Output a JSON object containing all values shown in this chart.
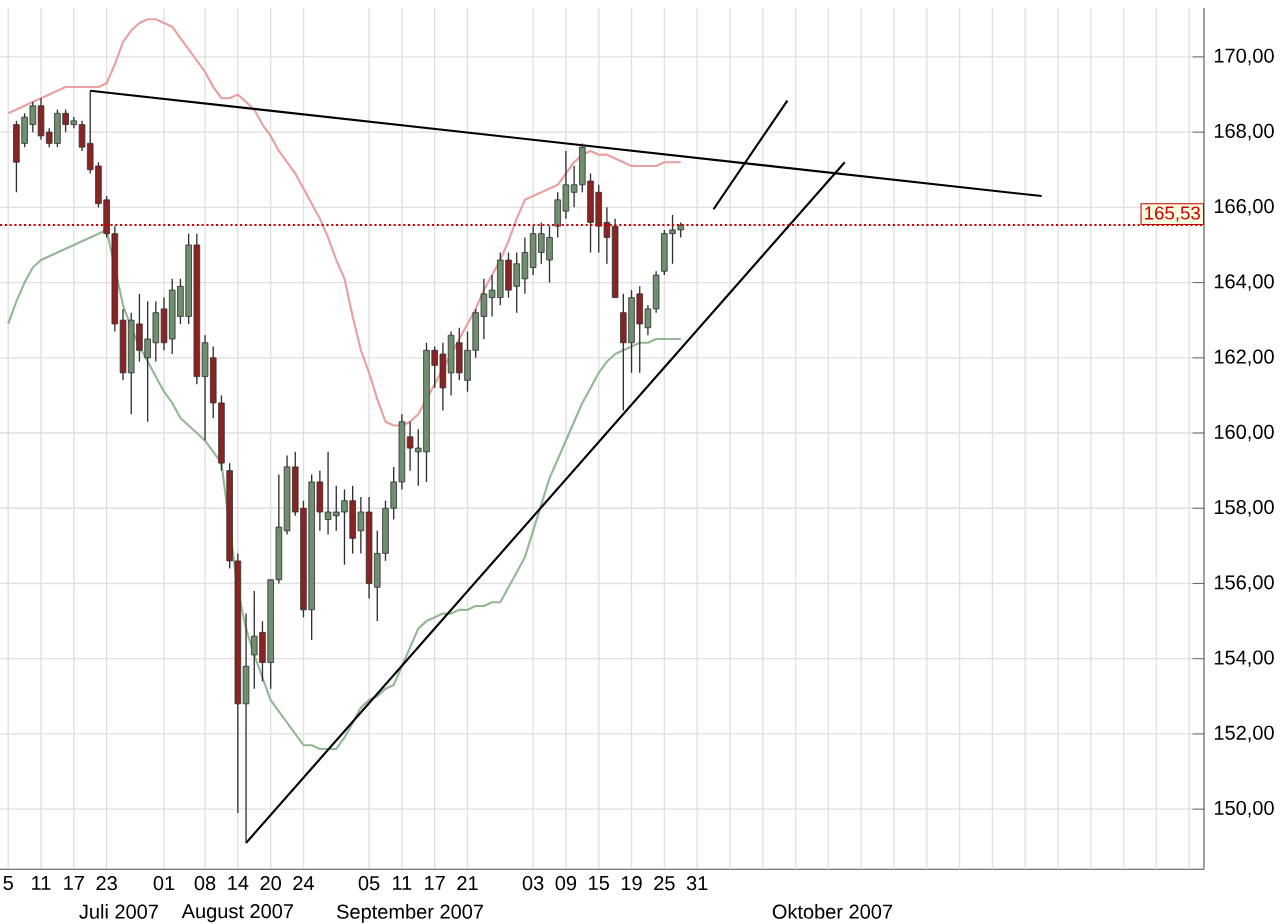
{
  "chart_data": {
    "type": "candlestick",
    "categories": [
      "5",
      null,
      null,
      null,
      "11",
      null,
      null,
      null,
      "17",
      null,
      null,
      null,
      "23",
      null,
      null,
      null,
      null,
      null,
      null,
      "01",
      null,
      null,
      null,
      null,
      "08",
      null,
      null,
      null,
      "14",
      null,
      null,
      null,
      "20",
      null,
      null,
      null,
      "24",
      null,
      null,
      null,
      null,
      null,
      null,
      null,
      "05",
      null,
      null,
      null,
      "11",
      null,
      null,
      null,
      "17",
      null,
      null,
      null,
      "21",
      null,
      null,
      null,
      null,
      null,
      null,
      null,
      "03",
      null,
      null,
      null,
      "09",
      null,
      null,
      null,
      "15",
      null,
      null,
      null,
      "19",
      null,
      null,
      null,
      "25",
      null,
      null,
      null,
      "31",
      null,
      null,
      null,
      null,
      null,
      null,
      null,
      null,
      null,
      null,
      null,
      null,
      null,
      null,
      null,
      null,
      null,
      null,
      null,
      null,
      null,
      null,
      null,
      null,
      null,
      null,
      null,
      null,
      null,
      null,
      null,
      null,
      null,
      null,
      null,
      null,
      null,
      null,
      null,
      null,
      null,
      null,
      null,
      null,
      null,
      null,
      null,
      null,
      null,
      null,
      null,
      null,
      null,
      null,
      null,
      null,
      null,
      null,
      null,
      null,
      null
    ],
    "ohlc": [
      null,
      [
        168.2,
        168.3,
        166.4,
        167.2
      ],
      [
        167.7,
        168.5,
        167.6,
        168.4
      ],
      [
        168.2,
        168.8,
        168.0,
        168.7
      ],
      [
        168.7,
        168.9,
        167.8,
        167.9
      ],
      [
        168.0,
        168.1,
        167.6,
        167.7
      ],
      [
        167.7,
        168.6,
        167.6,
        168.5
      ],
      [
        168.5,
        168.6,
        168.0,
        168.2
      ],
      [
        168.2,
        168.4,
        168.1,
        168.3
      ],
      [
        168.2,
        168.3,
        167.5,
        167.6
      ],
      [
        167.7,
        169.1,
        166.9,
        167.0
      ],
      [
        167.1,
        167.2,
        166.0,
        166.1
      ],
      [
        166.2,
        166.3,
        165.2,
        165.3
      ],
      [
        165.3,
        165.5,
        162.7,
        162.9
      ],
      [
        163.0,
        163.3,
        161.4,
        161.6
      ],
      [
        161.6,
        163.2,
        160.5,
        163.0
      ],
      [
        162.9,
        163.7,
        161.9,
        162.2
      ],
      [
        162.0,
        163.5,
        160.3,
        162.5
      ],
      [
        162.4,
        163.5,
        161.9,
        163.2
      ],
      [
        163.3,
        163.6,
        162.2,
        162.4
      ],
      [
        162.5,
        164.1,
        162.1,
        163.8
      ],
      [
        163.1,
        164.1,
        162.9,
        163.9
      ],
      [
        163.1,
        165.3,
        162.9,
        165.0
      ],
      [
        165.0,
        165.3,
        161.3,
        161.5
      ],
      [
        161.5,
        162.6,
        159.8,
        162.4
      ],
      [
        162.0,
        162.3,
        160.4,
        160.8
      ],
      [
        160.8,
        161.0,
        159.0,
        159.2
      ],
      [
        159.0,
        159.2,
        156.4,
        156.6
      ],
      [
        156.6,
        156.8,
        149.9,
        152.8
      ],
      [
        152.8,
        155.2,
        149.1,
        153.8
      ],
      [
        154.1,
        155.8,
        153.2,
        154.6
      ],
      [
        154.7,
        155.0,
        153.4,
        153.9
      ],
      [
        153.9,
        156.1,
        153.2,
        156.1
      ],
      [
        156.1,
        158.9,
        156.0,
        157.5
      ],
      [
        157.4,
        159.4,
        157.3,
        159.1
      ],
      [
        159.1,
        159.5,
        157.8,
        157.9
      ],
      [
        158.0,
        158.2,
        155.1,
        155.3
      ],
      [
        155.3,
        158.9,
        154.5,
        158.7
      ],
      [
        158.7,
        159.0,
        157.4,
        157.9
      ],
      [
        157.7,
        159.5,
        157.3,
        157.9
      ],
      [
        157.8,
        158.6,
        157.4,
        157.9
      ],
      [
        157.9,
        158.5,
        156.5,
        158.2
      ],
      [
        158.2,
        158.6,
        156.8,
        157.2
      ],
      [
        157.4,
        158.3,
        156.8,
        157.9
      ],
      [
        157.9,
        158.3,
        155.6,
        156.0
      ],
      [
        155.9,
        157.4,
        155.0,
        156.8
      ],
      [
        156.8,
        158.2,
        156.6,
        158.0
      ],
      [
        158.0,
        159.1,
        157.7,
        158.7
      ],
      [
        158.7,
        160.5,
        158.5,
        160.3
      ],
      [
        159.9,
        160.3,
        159.0,
        159.6
      ],
      [
        159.5,
        160.1,
        158.6,
        159.6
      ],
      [
        159.5,
        162.4,
        158.7,
        162.2
      ],
      [
        162.2,
        162.3,
        161.2,
        161.8
      ],
      [
        162.1,
        162.4,
        160.6,
        161.2
      ],
      [
        161.6,
        162.7,
        161.0,
        162.6
      ],
      [
        162.4,
        162.8,
        161.4,
        161.6
      ],
      [
        161.4,
        162.7,
        161.1,
        162.2
      ],
      [
        162.2,
        163.3,
        162.0,
        163.2
      ],
      [
        163.1,
        164.1,
        162.5,
        163.7
      ],
      [
        163.6,
        164.2,
        163.1,
        163.8
      ],
      [
        163.6,
        164.8,
        163.4,
        164.6
      ],
      [
        164.6,
        164.8,
        163.6,
        163.8
      ],
      [
        163.9,
        164.8,
        163.2,
        164.5
      ],
      [
        164.1,
        165.2,
        163.7,
        164.8
      ],
      [
        164.4,
        165.5,
        164.2,
        165.3
      ],
      [
        164.8,
        165.6,
        164.5,
        165.3
      ],
      [
        164.6,
        165.5,
        164.0,
        165.2
      ],
      [
        165.5,
        166.4,
        165.2,
        166.2
      ],
      [
        165.9,
        167.5,
        165.7,
        166.6
      ],
      [
        166.4,
        167.1,
        166.0,
        166.6
      ],
      [
        166.6,
        167.7,
        166.4,
        167.6
      ],
      [
        166.7,
        166.9,
        164.8,
        165.6
      ],
      [
        166.4,
        166.6,
        164.8,
        165.5
      ],
      [
        165.6,
        166.0,
        164.5,
        165.2
      ],
      [
        165.5,
        165.7,
        163.6,
        163.6
      ],
      [
        163.2,
        163.7,
        160.6,
        162.4
      ],
      [
        162.4,
        163.8,
        161.6,
        163.6
      ],
      [
        163.7,
        163.9,
        161.6,
        162.9
      ],
      [
        162.8,
        163.4,
        162.6,
        163.3
      ],
      [
        163.3,
        164.3,
        163.2,
        164.2
      ],
      [
        164.3,
        165.4,
        164.2,
        165.3
      ],
      [
        165.3,
        165.8,
        164.5,
        165.4
      ],
      [
        165.4,
        165.6,
        165.2,
        165.53
      ],
      null,
      null,
      null,
      null,
      null,
      null,
      null,
      null,
      null,
      null,
      null,
      null,
      null,
      null,
      null,
      null,
      null,
      null,
      null,
      null,
      null,
      null,
      null,
      null,
      null,
      null,
      null,
      null,
      null,
      null,
      null,
      null,
      null,
      null,
      null,
      null,
      null,
      null,
      null,
      null,
      null,
      null,
      null,
      null,
      null,
      null,
      null,
      null,
      null,
      null,
      null,
      null,
      null,
      null,
      null,
      null,
      null,
      null,
      null,
      null,
      null,
      null,
      null
    ],
    "series": [
      {
        "type": "line",
        "color": "#e8a0a0",
        "values": [
          168.5,
          168.6,
          168.7,
          168.8,
          168.9,
          169.0,
          169.1,
          169.2,
          169.2,
          169.2,
          169.2,
          169.2,
          169.3,
          169.8,
          170.4,
          170.7,
          170.9,
          171.0,
          171.0,
          170.9,
          170.8,
          170.5,
          170.2,
          169.9,
          169.6,
          169.2,
          168.9,
          168.9,
          169.0,
          168.8,
          168.6,
          168.2,
          167.9,
          167.5,
          167.2,
          166.9,
          166.5,
          166.1,
          165.7,
          165.2,
          164.6,
          164.1,
          163.1,
          162.2,
          161.6,
          160.9,
          160.3,
          160.2,
          160.2,
          160.3,
          160.5,
          160.9,
          161.3,
          161.7,
          162.1,
          162.5,
          162.9,
          163.3,
          163.8,
          164.2,
          164.6,
          165.1,
          165.7,
          166.2,
          166.3,
          166.4,
          166.5,
          166.6,
          166.9,
          167.2,
          167.4,
          167.5,
          167.4,
          167.4,
          167.3,
          167.2,
          167.1,
          167.1,
          167.1,
          167.1,
          167.2,
          167.2,
          167.2,
          null,
          null,
          null,
          null,
          null,
          null,
          null,
          null,
          null,
          null,
          null,
          null,
          null,
          null,
          null,
          null,
          null,
          null,
          null,
          null,
          null,
          null,
          null,
          null,
          null,
          null,
          null,
          null,
          null,
          null,
          null,
          null,
          null,
          null,
          null,
          null,
          null,
          null,
          null,
          null,
          null,
          null,
          null,
          null,
          null,
          null,
          null,
          null,
          null,
          null,
          null,
          null,
          null,
          null,
          null,
          null,
          null,
          null,
          null,
          null,
          null,
          null,
          null
        ]
      },
      {
        "type": "line",
        "color": "#94b894",
        "values": [
          162.9,
          163.5,
          164.0,
          164.4,
          164.6,
          164.7,
          164.8,
          164.9,
          165.0,
          165.1,
          165.2,
          165.3,
          165.4,
          164.4,
          163.4,
          162.8,
          162.3,
          161.9,
          161.5,
          161.1,
          160.8,
          160.4,
          160.2,
          160.0,
          159.8,
          159.5,
          159.2,
          null,
          155.8,
          154.8,
          154.1,
          153.5,
          152.9,
          152.6,
          152.3,
          152.0,
          151.7,
          151.7,
          151.6,
          151.6,
          151.6,
          151.9,
          152.3,
          152.7,
          152.9,
          153.0,
          153.2,
          153.3,
          153.8,
          154.3,
          154.8,
          155.0,
          155.1,
          155.2,
          155.2,
          155.3,
          155.3,
          155.4,
          155.4,
          155.5,
          155.5,
          155.9,
          156.3,
          156.7,
          157.4,
          158.1,
          158.8,
          159.3,
          159.8,
          160.3,
          160.8,
          161.2,
          161.6,
          161.9,
          162.1,
          162.2,
          162.3,
          162.4,
          162.4,
          162.5,
          162.5,
          162.5,
          162.5,
          null,
          null,
          null,
          null,
          null,
          null,
          null,
          null,
          null,
          null,
          null,
          null,
          null,
          null,
          null,
          null,
          null,
          null,
          null,
          null,
          null,
          null,
          null,
          null,
          null,
          null,
          null,
          null,
          null,
          null,
          null,
          null,
          null,
          null,
          null,
          null,
          null,
          null,
          null,
          null,
          null,
          null,
          null,
          null,
          null,
          null,
          null,
          null,
          null,
          null,
          null,
          null,
          null,
          null,
          null,
          null,
          null,
          null,
          null,
          null,
          null,
          null,
          null
        ]
      },
      {
        "type": "line",
        "color": "#000000",
        "values": [
          null,
          null,
          null,
          null,
          null,
          null,
          null,
          null,
          null,
          null,
          169.1,
          null,
          null,
          null,
          null,
          null,
          null,
          null,
          null,
          null,
          null,
          null,
          null,
          null,
          null,
          null,
          null,
          null,
          null,
          null,
          null,
          null,
          null,
          null,
          null,
          null,
          null,
          null,
          null,
          null,
          null,
          null,
          null,
          null,
          null,
          null,
          null,
          null,
          null,
          null,
          null,
          null,
          null,
          null,
          null,
          null,
          null,
          null,
          null,
          null,
          null,
          null,
          null,
          null,
          null,
          null,
          null,
          null,
          null,
          null,
          null,
          null,
          null,
          null,
          null,
          null,
          null,
          null,
          null,
          null,
          null,
          null,
          null,
          null,
          null,
          null,
          null,
          null,
          null,
          null,
          null,
          null,
          null,
          null,
          null,
          null,
          null,
          null,
          null,
          null,
          null,
          null,
          null,
          null,
          null,
          null,
          null,
          null,
          null,
          null,
          null,
          null,
          null,
          null,
          null,
          null,
          null,
          null,
          null,
          null,
          null,
          null,
          null,
          null,
          null,
          null,
          166.3,
          null,
          null,
          null,
          null,
          null,
          null,
          null,
          null,
          null,
          null,
          null,
          null,
          null,
          null,
          null,
          null,
          null,
          null,
          null
        ]
      },
      {
        "type": "line",
        "color": "#000000",
        "values": [
          null,
          null,
          null,
          null,
          null,
          null,
          null,
          null,
          null,
          null,
          null,
          null,
          null,
          null,
          null,
          null,
          null,
          null,
          null,
          null,
          null,
          null,
          null,
          null,
          null,
          null,
          null,
          null,
          null,
          149.1,
          null,
          null,
          null,
          null,
          null,
          null,
          null,
          null,
          null,
          null,
          null,
          null,
          null,
          null,
          null,
          null,
          null,
          null,
          null,
          null,
          null,
          null,
          null,
          null,
          null,
          null,
          null,
          null,
          null,
          null,
          null,
          null,
          null,
          null,
          null,
          null,
          null,
          null,
          null,
          null,
          null,
          null,
          null,
          null,
          null,
          null,
          null,
          null,
          null,
          null,
          null,
          null,
          null,
          null,
          null,
          null,
          null,
          null,
          null,
          null,
          null,
          null,
          null,
          null,
          null,
          null,
          null,
          null,
          null,
          null,
          null,
          null,
          167.2,
          null,
          null,
          null,
          null,
          null,
          null,
          null,
          null,
          null,
          null,
          null,
          null,
          null,
          null,
          null,
          null,
          null,
          null,
          null,
          null,
          null,
          null,
          null,
          null,
          null,
          null,
          null,
          null,
          null,
          null,
          null,
          null,
          null,
          null,
          null,
          null,
          null,
          null,
          null,
          null,
          null,
          null,
          null
        ]
      },
      {
        "type": "line",
        "color": "#000000",
        "values": [
          null,
          null,
          null,
          null,
          null,
          null,
          null,
          null,
          null,
          null,
          null,
          null,
          null,
          null,
          null,
          null,
          null,
          null,
          null,
          null,
          null,
          null,
          null,
          null,
          null,
          null,
          null,
          null,
          null,
          null,
          null,
          null,
          null,
          null,
          null,
          null,
          null,
          null,
          null,
          null,
          null,
          null,
          null,
          null,
          null,
          null,
          null,
          null,
          null,
          null,
          null,
          null,
          null,
          null,
          null,
          null,
          null,
          null,
          null,
          null,
          null,
          null,
          null,
          null,
          null,
          null,
          null,
          null,
          null,
          null,
          null,
          null,
          null,
          null,
          null,
          null,
          null,
          null,
          null,
          null,
          null,
          null,
          null,
          null,
          null,
          null,
          165.95,
          null,
          null,
          null,
          null,
          null,
          null,
          null,
          null,
          168.84,
          null,
          null,
          null,
          null,
          null,
          null,
          null,
          null,
          null,
          null,
          null,
          null,
          null,
          null,
          null,
          null,
          null,
          null,
          null,
          null,
          null,
          null,
          null,
          null,
          null,
          null,
          null,
          null,
          null,
          null,
          null,
          null,
          null,
          null,
          null,
          null,
          null,
          null,
          null,
          null,
          null,
          null,
          null,
          null,
          null,
          null,
          null,
          null,
          null,
          null
        ]
      }
    ],
    "ylim": [
      148.4,
      171.3
    ],
    "yticks": [
      {
        "value": 150,
        "label": "150,00"
      },
      {
        "value": 152,
        "label": "152,00"
      },
      {
        "value": 154,
        "label": "154,00"
      },
      {
        "value": 156,
        "label": "156,00"
      },
      {
        "value": 158,
        "label": "158,00"
      },
      {
        "value": 160,
        "label": "160,00"
      },
      {
        "value": 162,
        "label": "162,00"
      },
      {
        "value": 164,
        "label": "164,00"
      },
      {
        "value": 166,
        "label": "166,00"
      },
      {
        "value": 168,
        "label": "168,00"
      },
      {
        "value": 170,
        "label": "170,00"
      }
    ],
    "ref_lines": [
      {
        "axis": "y",
        "value": 165.53,
        "label": "165,53",
        "color": "#cc0000",
        "line_style": "dotted"
      }
    ],
    "annotations": [
      "Juli 2007",
      "August 2007",
      "September 2007",
      "Oktober 2007"
    ],
    "grid": true
  }
}
